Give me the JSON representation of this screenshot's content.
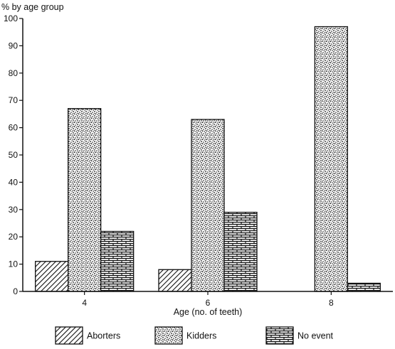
{
  "chart_data": {
    "type": "bar",
    "ylabel": "% by age group",
    "xlabel": "Age (no. of teeth)",
    "categories": [
      "4",
      "6",
      "8"
    ],
    "ylim": [
      0,
      100
    ],
    "yticks": [
      0,
      10,
      20,
      30,
      40,
      50,
      60,
      70,
      80,
      90,
      100
    ],
    "series": [
      {
        "name": "Aborters",
        "values": [
          11,
          8,
          0
        ],
        "pattern": "hatch"
      },
      {
        "name": "Kidders",
        "values": [
          67,
          63,
          97
        ],
        "pattern": "stipple"
      },
      {
        "name": "No event",
        "values": [
          22,
          29,
          3
        ],
        "pattern": "brick"
      }
    ],
    "grid": false,
    "legend_position": "bottom"
  }
}
